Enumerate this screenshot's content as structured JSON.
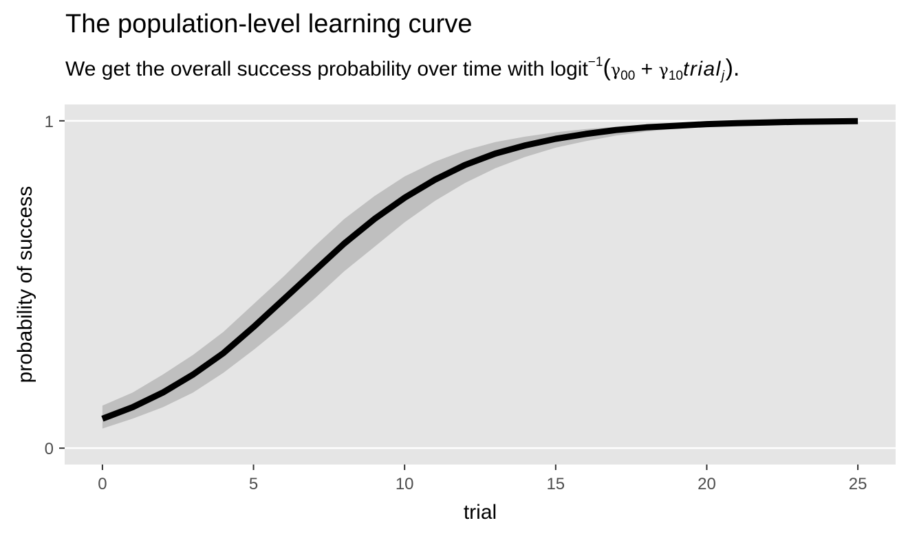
{
  "title": "The population-level learning curve",
  "subtitle": {
    "prefix": "We get the overall success probability over time with logit",
    "exponent": "−1",
    "open_paren": "(",
    "gamma_a": "γ",
    "gamma_a_sub": "00",
    "plus": "+",
    "gamma_b": "γ",
    "gamma_b_sub": "10",
    "var": "trial",
    "var_sub": "j",
    "close": ")."
  },
  "chart_data": {
    "type": "line",
    "title": "The population-level learning curve",
    "xlabel": "trial",
    "ylabel": "probability of success",
    "xlim": [
      -1.25,
      26.25
    ],
    "ylim": [
      -0.05,
      1.05
    ],
    "x_ticks": [
      0,
      5,
      10,
      15,
      20,
      25
    ],
    "y_ticks": [
      0,
      1
    ],
    "grid": true,
    "legend": "none",
    "colors": {
      "panel": "#e5e5e5",
      "grid": "#ffffff",
      "line": "#000000",
      "ribbon": "#bfbfbf"
    },
    "series": [
      {
        "x": [
          0,
          1,
          2,
          3,
          4,
          5,
          6,
          7,
          8,
          9,
          10,
          11,
          12,
          13,
          14,
          15,
          16,
          17,
          18,
          19,
          20,
          21,
          22,
          23,
          24,
          25
        ],
        "y": [
          0.09,
          0.125,
          0.17,
          0.225,
          0.29,
          0.37,
          0.455,
          0.54,
          0.625,
          0.7,
          0.765,
          0.82,
          0.865,
          0.9,
          0.925,
          0.945,
          0.96,
          0.972,
          0.98,
          0.985,
          0.99,
          0.993,
          0.995,
          0.997,
          0.998,
          0.999
        ],
        "lower": [
          0.06,
          0.09,
          0.125,
          0.17,
          0.23,
          0.3,
          0.375,
          0.455,
          0.54,
          0.615,
          0.69,
          0.755,
          0.81,
          0.855,
          0.89,
          0.918,
          0.938,
          0.955,
          0.967,
          0.976,
          0.982,
          0.987,
          0.99,
          0.993,
          0.995,
          0.997
        ],
        "upper": [
          0.13,
          0.17,
          0.225,
          0.285,
          0.355,
          0.44,
          0.525,
          0.615,
          0.7,
          0.77,
          0.83,
          0.875,
          0.91,
          0.935,
          0.952,
          0.965,
          0.975,
          0.982,
          0.988,
          0.991,
          0.994,
          0.996,
          0.997,
          0.998,
          0.999,
          1.0
        ]
      }
    ]
  }
}
